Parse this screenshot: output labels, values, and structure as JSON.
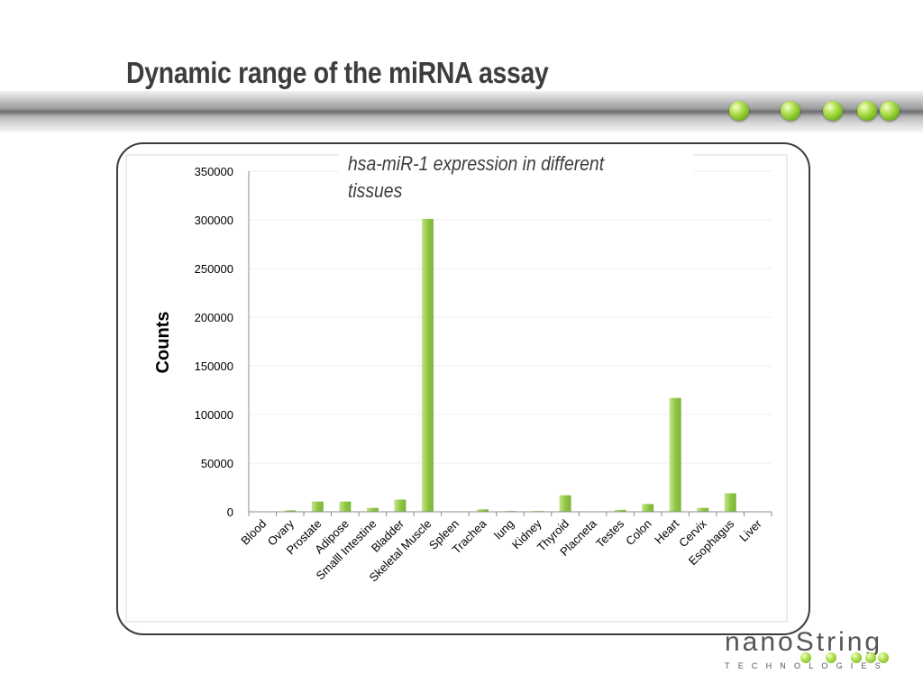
{
  "slide": {
    "title": "Dynamic range of the miRNA assay",
    "subtitle": "hsa-miR-1 expression in different tissues"
  },
  "logo": {
    "wordmark": "nanoString",
    "tagline": "TECHNOLOGIES"
  },
  "colors": {
    "bar_light": "#c6e48e",
    "bar_dark": "#7fb13c",
    "accent_green": "#8cc63f"
  },
  "chart_data": {
    "type": "bar",
    "title": "hsa-miR-1 expression in different tissues",
    "xlabel": "",
    "ylabel": "Counts",
    "ylim": [
      0,
      350000
    ],
    "yticks": [
      0,
      50000,
      100000,
      150000,
      200000,
      250000,
      300000,
      350000
    ],
    "grid": true,
    "categories": [
      "Blood",
      "Ovary",
      "Prostate",
      "Adipose",
      "Smalll Intestine",
      "Bladder",
      "Skeletal Muscle",
      "Spleen",
      "Trachea",
      "lung",
      "Kidney",
      "Thyroid",
      "Placneta",
      "Testes",
      "Colon",
      "Heart",
      "Cervix",
      "Esophagus",
      "Liver"
    ],
    "values": [
      300,
      1500,
      10500,
      10500,
      4000,
      12500,
      301000,
      500,
      2500,
      800,
      800,
      17000,
      400,
      2000,
      8000,
      117000,
      4000,
      19000,
      300
    ]
  }
}
